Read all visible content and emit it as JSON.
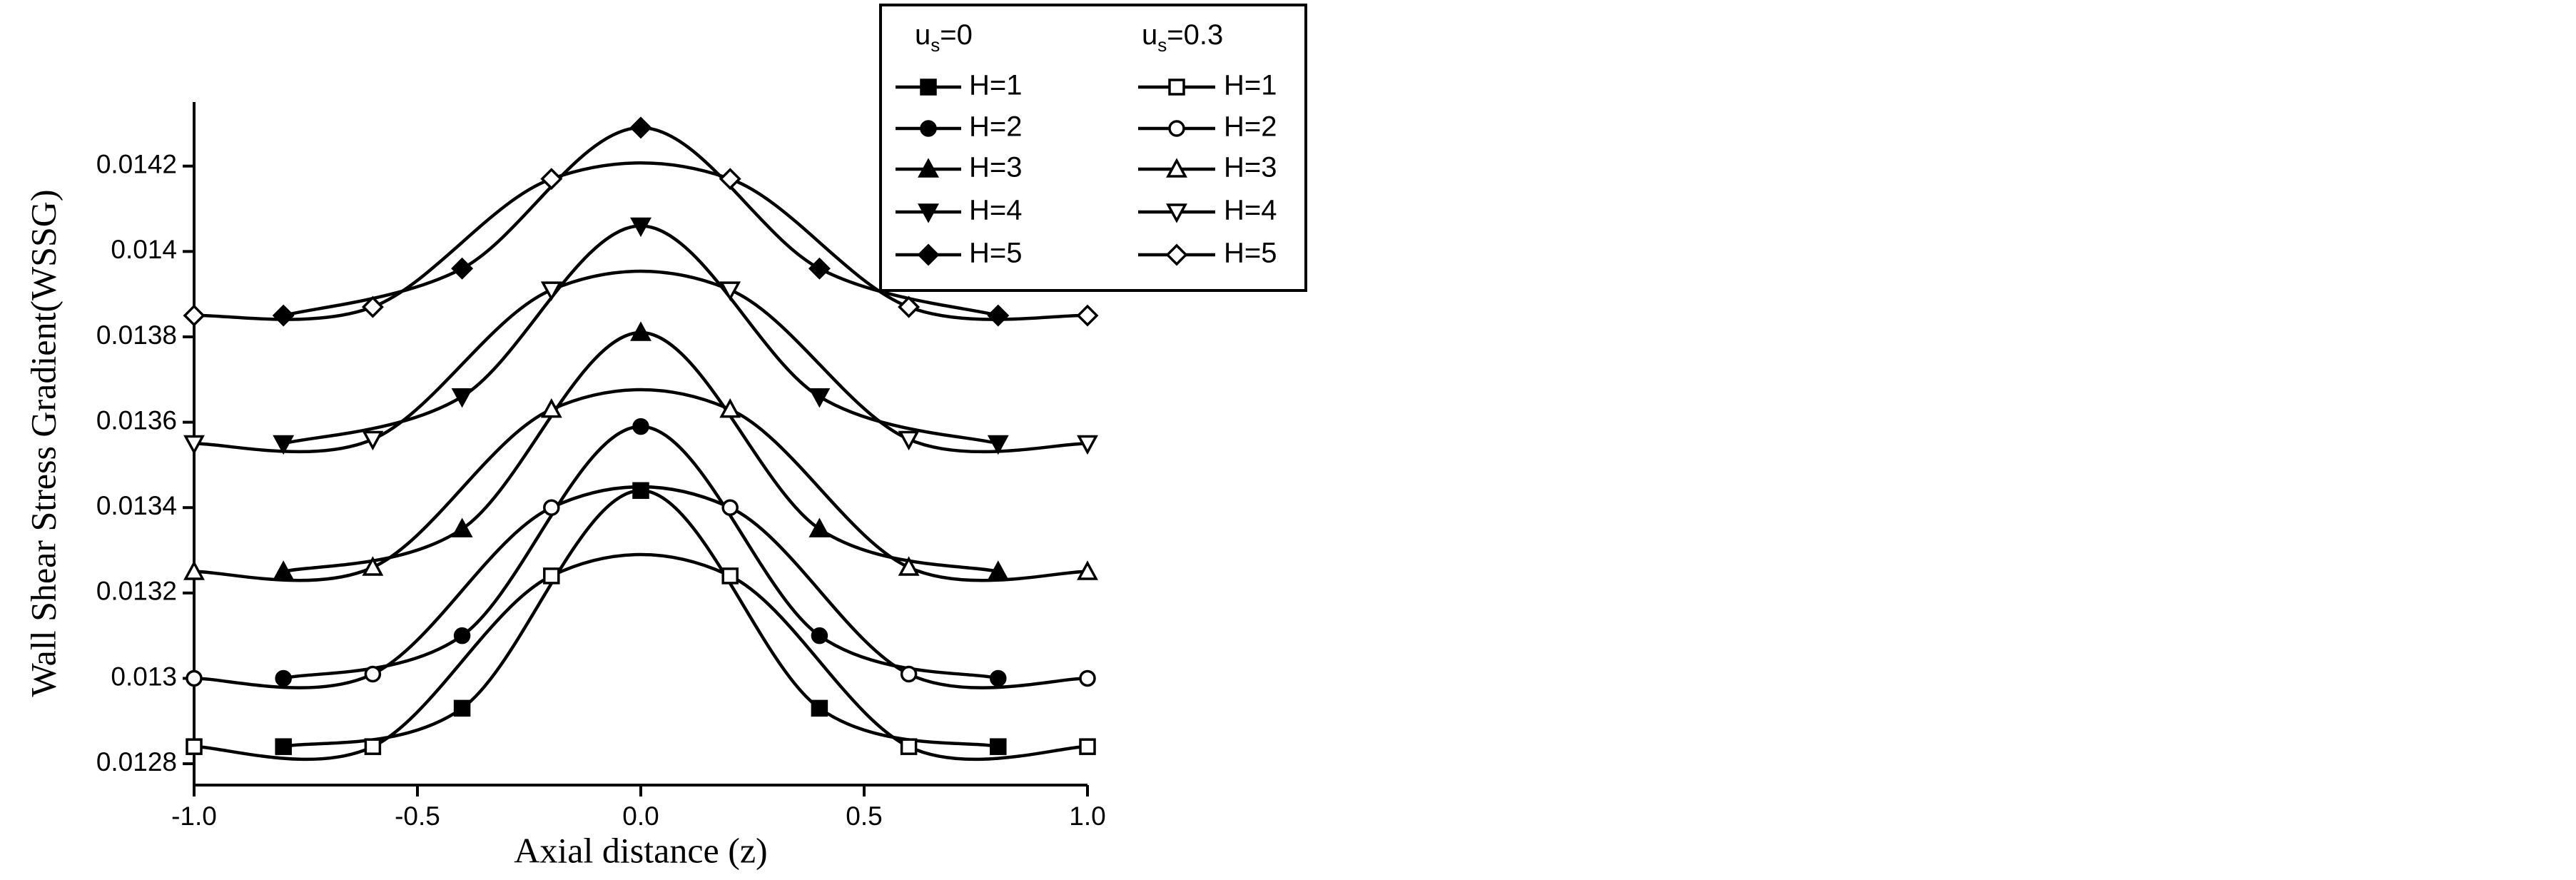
{
  "chart_data": {
    "type": "line",
    "xlabel": "Axial distance (z)",
    "ylabel": "Wall Shear Stress Gradient(WSSG)",
    "xlim": [
      -1,
      1
    ],
    "ylim": [
      0.01275,
      0.01435
    ],
    "xticks": [
      {
        "value": -1,
        "label": "-1.0"
      },
      {
        "value": -0.5,
        "label": "-0.5"
      },
      {
        "value": 0,
        "label": "0.0"
      },
      {
        "value": 0.5,
        "label": "0.5"
      },
      {
        "value": 1,
        "label": "1.0"
      }
    ],
    "yticks": [
      0.0128,
      0.013,
      0.0132,
      0.0134,
      0.0136,
      0.0138,
      0.014,
      0.0142
    ],
    "color": "#000000",
    "groups": [
      {
        "symbol": "u",
        "subscript": "s",
        "label": "=0",
        "filled": true,
        "series": [
          {
            "name": "H=1",
            "marker": "square",
            "x": [
              -0.8,
              -0.4,
              0,
              0.4,
              0.8
            ],
            "values": [
              0.01284,
              0.01293,
              0.01344,
              0.01293,
              0.01284
            ]
          },
          {
            "name": "H=2",
            "marker": "circle",
            "x": [
              -0.8,
              -0.4,
              0,
              0.4,
              0.8
            ],
            "values": [
              0.013,
              0.0131,
              0.01359,
              0.0131,
              0.013
            ]
          },
          {
            "name": "H=3",
            "marker": "triangle",
            "x": [
              -0.8,
              -0.4,
              0,
              0.4,
              0.8
            ],
            "values": [
              0.01325,
              0.01335,
              0.01381,
              0.01335,
              0.01325
            ]
          },
          {
            "name": "H=4",
            "marker": "triangle-down",
            "x": [
              -0.8,
              -0.4,
              0,
              0.4,
              0.8
            ],
            "values": [
              0.01355,
              0.01366,
              0.01406,
              0.01366,
              0.01355
            ]
          },
          {
            "name": "H=5",
            "marker": "diamond",
            "x": [
              -0.8,
              -0.4,
              0,
              0.4,
              0.8
            ],
            "values": [
              0.01385,
              0.01396,
              0.01429,
              0.01396,
              0.01385
            ]
          }
        ]
      },
      {
        "symbol": "u",
        "subscript": "s",
        "label": "=0.3",
        "filled": false,
        "series": [
          {
            "name": "H=1",
            "marker": "square",
            "x": [
              -1,
              -0.6,
              -0.2,
              0.2,
              0.6,
              1
            ],
            "values": [
              0.01284,
              0.01284,
              0.01324,
              0.01324,
              0.01284,
              0.01284
            ]
          },
          {
            "name": "H=2",
            "marker": "circle",
            "x": [
              -1,
              -0.6,
              -0.2,
              0.2,
              0.6,
              1
            ],
            "values": [
              0.013,
              0.01301,
              0.0134,
              0.0134,
              0.01301,
              0.013
            ]
          },
          {
            "name": "H=3",
            "marker": "triangle",
            "x": [
              -1,
              -0.6,
              -0.2,
              0.2,
              0.6,
              1
            ],
            "values": [
              0.01325,
              0.01326,
              0.01363,
              0.01363,
              0.01326,
              0.01325
            ]
          },
          {
            "name": "H=4",
            "marker": "triangle-down",
            "x": [
              -1,
              -0.6,
              -0.2,
              0.2,
              0.6,
              1
            ],
            "values": [
              0.01355,
              0.01356,
              0.01391,
              0.01391,
              0.01356,
              0.01355
            ]
          },
          {
            "name": "H=5",
            "marker": "diamond",
            "x": [
              -1,
              -0.6,
              -0.2,
              0.2,
              0.6,
              1
            ],
            "values": [
              0.01385,
              0.01387,
              0.01417,
              0.01417,
              0.01387,
              0.01385
            ]
          }
        ]
      }
    ]
  }
}
